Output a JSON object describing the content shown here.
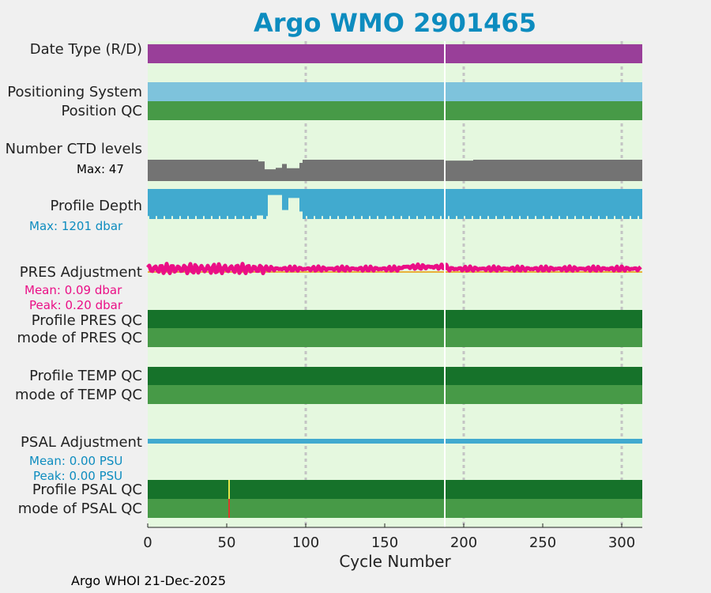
{
  "title": "Argo WMO 2901465",
  "footer": "Argo WHOI 21-Dec-2025",
  "chart_data": {
    "type": "timeline",
    "title": "Argo WMO 2901465",
    "xlabel": "Cycle Number",
    "xlim": [
      0,
      313
    ],
    "xticks": [
      0,
      50,
      100,
      150,
      200,
      250,
      300
    ],
    "tick_labels": [
      "0",
      "50",
      "100",
      "150",
      "200",
      "250",
      "300"
    ],
    "gridlines_x": [
      100,
      200,
      300
    ],
    "break_cycle": 188,
    "rows": {
      "date_type": {
        "label": "Date Type (R/D)",
        "color": "#993f99"
      },
      "positioning": {
        "label": "Positioning System",
        "color": "#7ec3dc"
      },
      "position_qc": {
        "label": "Position QC",
        "color": "#479a47"
      },
      "ctd_levels": {
        "label": "Number CTD levels",
        "max_text": "Max: 47",
        "color": "#737373"
      },
      "profile_depth": {
        "label": "Profile Depth",
        "max_text": "Max: 1201 dbar",
        "color": "#41aacf",
        "max_color": "#0d8cbf"
      },
      "pres_adjustment": {
        "label": "PRES Adjustment",
        "mean_text": "Mean: 0.09 dbar",
        "peak_text": "Peak: 0.20 dbar",
        "color": "#ea0f86"
      },
      "profile_pres_qc": {
        "label": "Profile PRES QC",
        "color": "#16722a"
      },
      "mode_pres_qc": {
        "label": "mode of PRES QC",
        "color": "#479a47"
      },
      "profile_temp_qc": {
        "label": "Profile TEMP QC",
        "color": "#16722a"
      },
      "mode_temp_qc": {
        "label": "mode of TEMP QC",
        "color": "#479a47"
      },
      "psal_adjustment": {
        "label": "PSAL Adjustment",
        "mean_text": "Mean: 0.00 PSU",
        "peak_text": "Peak: 0.00 PSU",
        "color": "#41aacf",
        "stat_color": "#0d8cbf"
      },
      "profile_psal_qc": {
        "label": "Profile PSAL QC",
        "color": "#16722a",
        "flag_cycle": 51,
        "flag_color": "#e6e64a"
      },
      "mode_psal_qc": {
        "label": "mode of PSAL QC",
        "color": "#479a47",
        "flag_cycle": 51,
        "flag_color": "#d93a2b"
      }
    }
  }
}
